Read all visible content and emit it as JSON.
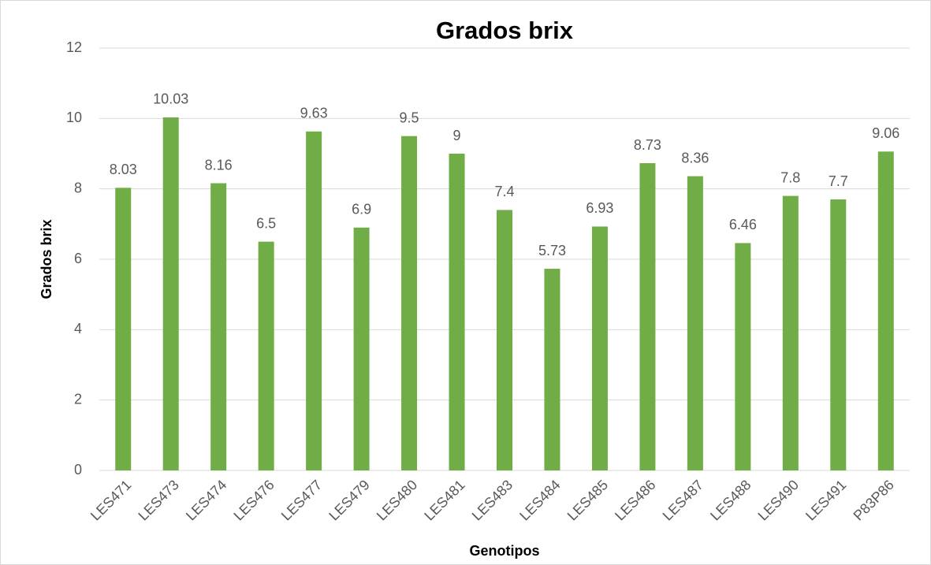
{
  "chart_data": {
    "type": "bar",
    "title": "Grados brix",
    "x_label": "Genotipos",
    "y_label": "Grados brix",
    "categories": [
      "LES471",
      "LES473",
      "LES474",
      "LES476",
      "LES477",
      "LES479",
      "LES480",
      "LES481",
      "LES483",
      "LES484",
      "LES485",
      "LES486",
      "LES487",
      "LES488",
      "LES490",
      "LES491",
      "P83P86"
    ],
    "values": [
      8.03,
      10.03,
      8.16,
      6.5,
      9.63,
      6.9,
      9.5,
      9,
      7.4,
      5.73,
      6.93,
      8.73,
      8.36,
      6.46,
      7.8,
      7.7,
      9.06
    ],
    "color": "#70ad47",
    "ylim": [
      0,
      12
    ],
    "yticks": [
      0,
      2,
      4,
      6,
      8,
      10,
      12
    ],
    "grid": true
  }
}
